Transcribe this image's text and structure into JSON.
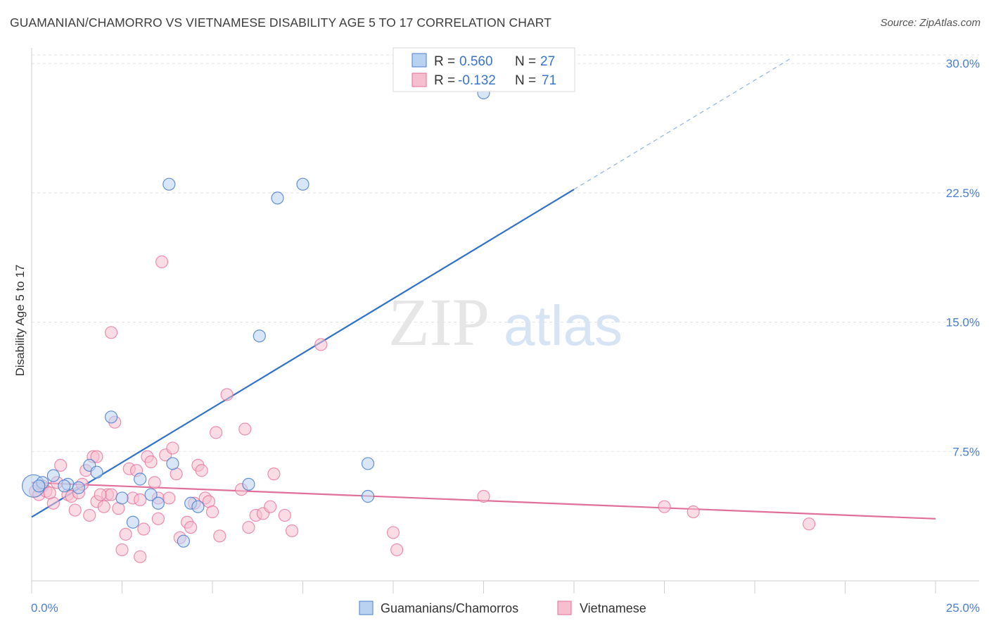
{
  "header": {
    "title": "GUAMANIAN/CHAMORRO VS VIETNAMESE DISABILITY AGE 5 TO 17 CORRELATION CHART",
    "source": "Source: ZipAtlas.com"
  },
  "watermark": {
    "zip": "ZIP",
    "atlas": "atlas"
  },
  "legend": {
    "series1": {
      "r_label": "R = ",
      "r_value": "0.560",
      "n_label": "N = ",
      "n_value": "27"
    },
    "series2": {
      "r_label": "R = ",
      "r_value": "-0.132",
      "n_label": "N = ",
      "n_value": "71"
    }
  },
  "colors": {
    "blue": "#4a7fcf",
    "blue_fill": "#b9d2f1",
    "blue_line": "#2f72c8",
    "pink": "#e66e98",
    "pink_fill": "#f6bfd0",
    "pink_line": "#e0709a"
  },
  "chart_data": {
    "type": "scatter",
    "title": "GUAMANIAN/CHAMORRO VS VIETNAMESE DISABILITY AGE 5 TO 17 CORRELATION CHART",
    "xlabel": "",
    "ylabel": "Disability Age 5 to 17",
    "xlim": [
      0,
      25
    ],
    "ylim": [
      0,
      30.5
    ],
    "x_tick_labels": [
      "0.0%",
      "25.0%"
    ],
    "y_ticks": [
      7.5,
      15.0,
      22.5,
      30.0
    ],
    "y_tick_labels": [
      "7.5%",
      "15.0%",
      "22.5%",
      "30.0%"
    ],
    "grid": true,
    "legend_position": "top-center",
    "series": [
      {
        "name": "Guamanians/Chamorros",
        "color": "#4a7fcf",
        "points": [
          [
            0.05,
            5.5
          ],
          [
            0.3,
            5.7
          ],
          [
            0.6,
            6.1
          ],
          [
            1.0,
            5.6
          ],
          [
            1.3,
            5.4
          ],
          [
            1.6,
            6.7
          ],
          [
            1.8,
            6.3
          ],
          [
            2.2,
            9.5
          ],
          [
            2.5,
            4.8
          ],
          [
            2.8,
            3.4
          ],
          [
            3.0,
            5.9
          ],
          [
            3.3,
            5.0
          ],
          [
            3.5,
            4.5
          ],
          [
            3.8,
            23.0
          ],
          [
            3.9,
            6.8
          ],
          [
            4.2,
            2.3
          ],
          [
            4.4,
            4.5
          ],
          [
            4.6,
            4.3
          ],
          [
            6.0,
            5.6
          ],
          [
            6.3,
            14.2
          ],
          [
            6.8,
            22.2
          ],
          [
            7.5,
            23.0
          ],
          [
            9.3,
            6.8
          ],
          [
            9.3,
            4.9
          ],
          [
            12.5,
            28.3
          ],
          [
            0.2,
            5.5
          ],
          [
            0.9,
            5.5
          ]
        ],
        "trend": {
          "x0": 0.0,
          "y0": 3.7,
          "x1": 15.0,
          "y1": 22.7,
          "dashed_to_x": 21.0,
          "dashed_to_y": 30.3
        }
      },
      {
        "name": "Vietnamese",
        "color": "#e66e98",
        "points": [
          [
            0.1,
            5.2
          ],
          [
            0.2,
            5.0
          ],
          [
            0.3,
            5.5
          ],
          [
            0.4,
            5.2
          ],
          [
            0.6,
            4.5
          ],
          [
            0.7,
            5.7
          ],
          [
            0.8,
            6.7
          ],
          [
            1.0,
            5.0
          ],
          [
            1.1,
            4.9
          ],
          [
            1.2,
            4.1
          ],
          [
            1.3,
            5.1
          ],
          [
            1.4,
            5.6
          ],
          [
            1.5,
            6.4
          ],
          [
            1.6,
            3.8
          ],
          [
            1.7,
            7.2
          ],
          [
            1.8,
            4.6
          ],
          [
            1.8,
            7.2
          ],
          [
            2.0,
            4.3
          ],
          [
            2.1,
            5.0
          ],
          [
            2.2,
            5.0
          ],
          [
            2.2,
            14.4
          ],
          [
            2.3,
            9.2
          ],
          [
            2.4,
            4.2
          ],
          [
            2.5,
            1.8
          ],
          [
            2.6,
            2.7
          ],
          [
            2.7,
            6.5
          ],
          [
            2.8,
            4.8
          ],
          [
            2.9,
            6.4
          ],
          [
            3.0,
            1.4
          ],
          [
            3.1,
            3.0
          ],
          [
            3.2,
            7.2
          ],
          [
            3.3,
            6.9
          ],
          [
            3.4,
            5.7
          ],
          [
            3.5,
            3.6
          ],
          [
            3.5,
            4.8
          ],
          [
            3.6,
            18.5
          ],
          [
            3.7,
            7.3
          ],
          [
            3.8,
            4.8
          ],
          [
            3.9,
            7.7
          ],
          [
            4.0,
            6.2
          ],
          [
            4.1,
            2.5
          ],
          [
            4.3,
            3.4
          ],
          [
            4.4,
            3.1
          ],
          [
            4.5,
            4.5
          ],
          [
            4.6,
            6.7
          ],
          [
            4.7,
            6.4
          ],
          [
            4.8,
            4.8
          ],
          [
            4.9,
            4.6
          ],
          [
            5.0,
            4.0
          ],
          [
            5.1,
            8.6
          ],
          [
            5.2,
            2.6
          ],
          [
            5.4,
            10.8
          ],
          [
            5.8,
            5.3
          ],
          [
            5.9,
            8.8
          ],
          [
            6.0,
            3.1
          ],
          [
            6.2,
            3.8
          ],
          [
            6.4,
            3.9
          ],
          [
            6.6,
            4.3
          ],
          [
            6.7,
            6.2
          ],
          [
            7.0,
            3.8
          ],
          [
            7.2,
            2.9
          ],
          [
            8.0,
            13.7
          ],
          [
            10.0,
            2.8
          ],
          [
            10.1,
            1.8
          ],
          [
            12.5,
            4.9
          ],
          [
            17.5,
            4.3
          ],
          [
            18.3,
            4.0
          ],
          [
            21.5,
            3.3
          ],
          [
            0.5,
            5.1
          ],
          [
            1.9,
            5.0
          ],
          [
            3.0,
            4.7
          ]
        ],
        "trend": {
          "x0": 0.0,
          "y0": 5.7,
          "x1": 25.0,
          "y1": 3.6
        }
      }
    ]
  }
}
